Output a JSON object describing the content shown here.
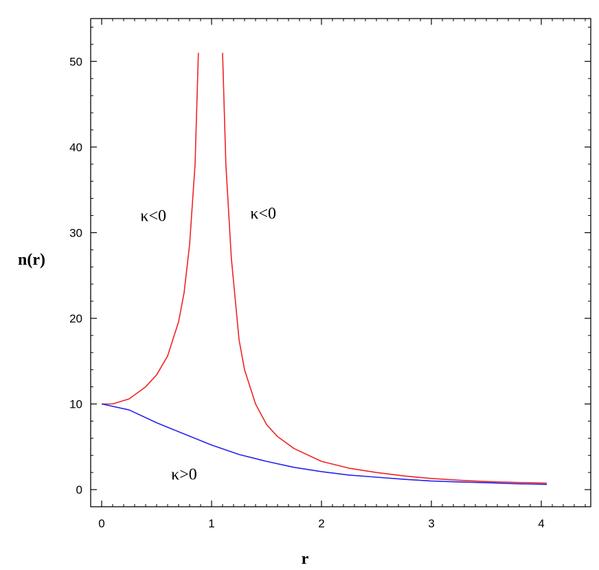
{
  "chart_data": {
    "type": "line",
    "xlabel": "r",
    "ylabel": "n(r)",
    "xlim": [
      -0.1,
      4.45
    ],
    "ylim": [
      -2,
      55
    ],
    "x_ticks": [
      0,
      1,
      2,
      3,
      4
    ],
    "y_ticks": [
      0,
      10,
      20,
      30,
      40,
      50
    ],
    "x_tick_labels": [
      "0",
      "1",
      "2",
      "3",
      "4"
    ],
    "y_tick_labels": [
      "0",
      "10",
      "20",
      "30",
      "40",
      "50"
    ],
    "grid": false,
    "series": [
      {
        "color": "#ee2222",
        "x": [
          0.0,
          0.1,
          0.25,
          0.4,
          0.5,
          0.6,
          0.7,
          0.75,
          0.8,
          0.85,
          0.88
        ],
        "y": [
          10.0,
          10.0,
          10.6,
          12.0,
          13.4,
          15.6,
          19.6,
          23.0,
          28.6,
          38.0,
          51.0
        ]
      },
      {
        "color": "#ee2222",
        "x": [
          1.1,
          1.13,
          1.18,
          1.25,
          1.3,
          1.4,
          1.5,
          1.6,
          1.75,
          2.0,
          2.25,
          2.5,
          2.75,
          3.0,
          3.25,
          3.5,
          3.75,
          4.05
        ],
        "y": [
          51.0,
          38.0,
          27.0,
          17.5,
          14.0,
          10.0,
          7.6,
          6.2,
          4.8,
          3.3,
          2.5,
          2.0,
          1.6,
          1.3,
          1.1,
          0.95,
          0.85,
          0.75
        ]
      },
      {
        "color": "#2222ee",
        "x": [
          0.0,
          0.25,
          0.5,
          0.75,
          1.0,
          1.25,
          1.5,
          1.75,
          2.0,
          2.25,
          2.5,
          2.75,
          3.0,
          3.25,
          3.5,
          3.75,
          4.05
        ],
        "y": [
          10.0,
          9.3,
          7.8,
          6.5,
          5.2,
          4.1,
          3.3,
          2.6,
          2.1,
          1.7,
          1.45,
          1.2,
          1.0,
          0.9,
          0.8,
          0.7,
          0.6
        ]
      }
    ],
    "annotations": [
      {
        "text": "κ<0",
        "x": 0.47,
        "y": 32.0
      },
      {
        "text": "κ<0",
        "x": 1.47,
        "y": 32.3
      },
      {
        "text": "κ>0",
        "x": 0.75,
        "y": 1.8
      }
    ]
  }
}
